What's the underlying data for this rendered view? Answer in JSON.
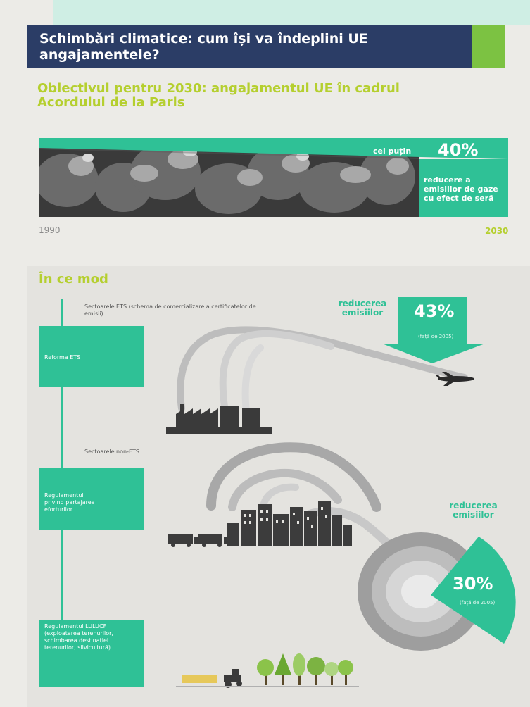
{
  "header": {
    "title": "Schimbări climatice: cum își va îndeplini UE angajamentele?"
  },
  "objective": {
    "title": "Obiectivul pentru 2030: angajamentul UE în cadrul Acordului de la Paris",
    "goal_prefix": "cel puțin",
    "goal_value": "40%",
    "goal_description": "reducere a emisiilor de gaze cu efect de seră",
    "year_start": "1990",
    "year_end": "2030"
  },
  "how": {
    "title": "În ce mod",
    "ets": {
      "sector_label": "Sectoarele ETS (schema de comercializare a certificatelor de emisii)",
      "box_label": "Reforma ETS",
      "reduction_label": "reducerea emisiilor",
      "reduction_value": "43%",
      "reduction_note": "(față de 2005)"
    },
    "non_ets": {
      "sector_label": "Sectoarele non-ETS",
      "box_label": "Regulamentul privind partajarea eforturilor",
      "reduction_label": "reducerea emisiilor",
      "reduction_value": "30%",
      "reduction_note": "(față de 2005)"
    },
    "lulucf": {
      "box_label": "Regulamentul LULUCF (exploatarea terenurilor, schimbarea destinației terenurilor, silvicultură)"
    }
  },
  "colors": {
    "navy": "#2b3d66",
    "teal": "#2fc196",
    "lime": "#b5cf2f",
    "green": "#7cc242"
  },
  "icons": [
    "factory-icon",
    "airplane-icon",
    "truck-icon",
    "city-icon",
    "globe-icon",
    "tractor-icon",
    "tree-icon"
  ]
}
